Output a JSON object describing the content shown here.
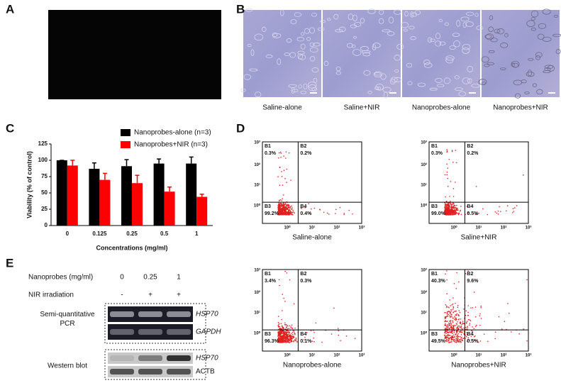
{
  "panel_labels": [
    "A",
    "B",
    "C",
    "D",
    "E"
  ],
  "panel_b": {
    "captions": [
      "Saline-alone",
      "Saline+NIR",
      "Nanoprobes-alone",
      "Nanoprobes+NIR"
    ]
  },
  "chart_data": {
    "type": "bar",
    "categories": [
      "0",
      "0.125",
      "0.25",
      "0.5",
      "1"
    ],
    "series": [
      {
        "name": "Nanoprobes-alone (n=3)",
        "color": "#000000",
        "values": [
          100,
          87,
          91,
          95,
          95
        ],
        "errors": [
          0,
          9,
          10,
          7,
          10
        ]
      },
      {
        "name": "Nanoprobes+NIR (n=3)",
        "color": "#ff0000",
        "values": [
          92,
          70,
          65,
          52,
          44
        ],
        "errors": [
          8,
          10,
          12,
          7,
          4
        ]
      }
    ],
    "ylim": [
      0,
      125
    ],
    "yticks": [
      0,
      25,
      50,
      75,
      100,
      125
    ],
    "ylabel": "Viability (% of control)",
    "xlabel": "Concentrations (mg/ml)"
  },
  "panel_d": {
    "x_ticks": [
      "10⁰",
      "10¹",
      "10²",
      "10³"
    ],
    "y_ticks": [
      "10⁰",
      "10¹",
      "10²",
      "10³"
    ],
    "plots": [
      {
        "caption": "Saline-alone",
        "quadrants": [
          {
            "name": "B1",
            "percent": "0.3%"
          },
          {
            "name": "B2",
            "percent": "0.2%"
          },
          {
            "name": "B3",
            "percent": "99.2%"
          },
          {
            "name": "B4",
            "percent": "0.4%"
          }
        ]
      },
      {
        "caption": "Saline+NIR",
        "quadrants": [
          {
            "name": "B1",
            "percent": "0.3%"
          },
          {
            "name": "B2",
            "percent": "0.2%"
          },
          {
            "name": "B3",
            "percent": "99.0%"
          },
          {
            "name": "B4",
            "percent": "0.5%"
          }
        ]
      },
      {
        "caption": "Nanoprobes-alone",
        "quadrants": [
          {
            "name": "B1",
            "percent": "3.4%"
          },
          {
            "name": "B2",
            "percent": "0.3%"
          },
          {
            "name": "B3",
            "percent": "96.3%"
          },
          {
            "name": "B4",
            "percent": "0.1%"
          }
        ]
      },
      {
        "caption": "Nanoprobes+NIR",
        "quadrants": [
          {
            "name": "B1",
            "percent": "40.3%"
          },
          {
            "name": "B2",
            "percent": "9.6%"
          },
          {
            "name": "B3",
            "percent": "49.5%"
          },
          {
            "name": "B4",
            "percent": "0.5%"
          }
        ]
      }
    ]
  },
  "panel_e": {
    "rows": [
      {
        "label": "Nanoprobes (mg/ml)",
        "values": [
          "0",
          "0.25",
          "1"
        ]
      },
      {
        "label": "NIR irradiation",
        "values": [
          "-",
          "+",
          "+"
        ]
      }
    ],
    "blocks": [
      {
        "label": [
          "Semi-quantitative",
          "PCR"
        ],
        "genes": [
          "HSP70",
          "GAPDH"
        ]
      },
      {
        "label": [
          "Western blot"
        ],
        "genes": [
          "HSP70",
          "ACTB"
        ]
      }
    ]
  }
}
